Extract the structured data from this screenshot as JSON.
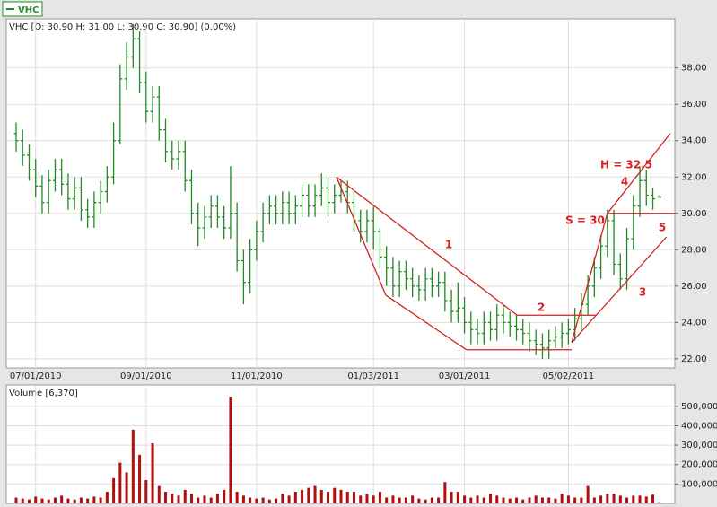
{
  "chart_data": {
    "type": "ohlc",
    "name": "VHC",
    "header": "VHC [O: 30.90  H: 31.00  L: 30.90  C: 30.90] (0.00%)",
    "color": "#228b22",
    "categories": [
      null,
      null,
      null,
      "07/01/2010",
      null,
      null,
      null,
      null,
      null,
      null,
      null,
      null,
      null,
      null,
      null,
      null,
      null,
      null,
      null,
      null,
      "09/01/2010",
      null,
      null,
      null,
      null,
      null,
      null,
      null,
      null,
      null,
      null,
      null,
      null,
      null,
      null,
      null,
      null,
      "11/01/2010",
      null,
      null,
      null,
      null,
      null,
      null,
      null,
      null,
      null,
      null,
      null,
      null,
      null,
      null,
      null,
      null,
      null,
      "01/03/2011",
      null,
      null,
      null,
      null,
      null,
      null,
      null,
      null,
      null,
      null,
      null,
      null,
      null,
      "03/01/2011",
      null,
      null,
      null,
      null,
      null,
      null,
      null,
      null,
      null,
      null,
      null,
      null,
      null,
      null,
      null,
      "05/02/2011",
      null,
      null,
      null,
      null,
      null,
      null,
      null,
      null,
      null,
      null,
      null,
      null,
      null,
      null
    ],
    "open": [
      34.4,
      34.0,
      33.2,
      32.4,
      31.5,
      30.6,
      31.8,
      32.4,
      31.6,
      30.8,
      31.4,
      30.2,
      29.8,
      30.6,
      31.2,
      32.0,
      34.0,
      37.4,
      38.6,
      39.6,
      37.2,
      35.6,
      36.4,
      34.6,
      33.4,
      33.0,
      33.4,
      31.8,
      30.0,
      29.2,
      29.8,
      30.4,
      29.8,
      29.2,
      30.0,
      27.4,
      26.2,
      28.0,
      29.0,
      30.0,
      30.4,
      30.0,
      30.6,
      30.0,
      30.4,
      31.0,
      30.4,
      31.0,
      31.4,
      30.6,
      31.0,
      31.2,
      30.6,
      29.6,
      29.0,
      29.6,
      29.0,
      27.6,
      27.0,
      26.0,
      26.8,
      26.4,
      26.0,
      25.8,
      26.4,
      26.0,
      26.2,
      25.2,
      24.6,
      24.8,
      24.0,
      23.6,
      23.4,
      24.0,
      23.6,
      24.4,
      24.0,
      23.8,
      23.6,
      23.4,
      23.0,
      22.8,
      22.6,
      23.0,
      23.2,
      23.4,
      23.6,
      24.2,
      25.0,
      26.0,
      27.0,
      28.2,
      29.6,
      27.2,
      26.4,
      28.6,
      30.4,
      31.8,
      31.0,
      30.9
    ],
    "high": [
      35.0,
      34.6,
      33.8,
      33.0,
      32.1,
      32.4,
      33.0,
      33.0,
      32.2,
      32.0,
      32.0,
      30.8,
      31.2,
      31.8,
      32.6,
      35.0,
      38.2,
      39.4,
      40.4,
      40.0,
      37.8,
      37.0,
      37.0,
      35.2,
      34.0,
      34.0,
      34.0,
      32.4,
      30.6,
      30.4,
      31.0,
      31.0,
      30.4,
      32.6,
      30.6,
      28.0,
      28.6,
      29.6,
      30.6,
      31.0,
      31.0,
      31.2,
      31.2,
      31.0,
      31.6,
      31.6,
      31.6,
      32.2,
      32.0,
      31.6,
      31.8,
      31.8,
      31.2,
      30.2,
      30.2,
      30.4,
      29.2,
      28.2,
      27.6,
      27.4,
      27.4,
      27.0,
      26.6,
      27.0,
      27.0,
      26.8,
      26.8,
      25.8,
      26.2,
      25.4,
      24.6,
      24.2,
      24.6,
      24.6,
      25.0,
      25.0,
      24.6,
      24.4,
      24.2,
      24.0,
      23.6,
      23.4,
      23.6,
      23.8,
      24.0,
      24.2,
      24.8,
      25.6,
      26.6,
      27.6,
      28.8,
      30.2,
      30.2,
      27.8,
      29.2,
      31.0,
      32.6,
      32.4,
      31.4,
      31.0
    ],
    "low": [
      33.4,
      32.6,
      31.8,
      30.9,
      30.0,
      30.0,
      31.2,
      31.0,
      30.2,
      30.2,
      29.6,
      29.2,
      29.2,
      30.0,
      30.6,
      31.6,
      33.8,
      36.8,
      38.0,
      36.6,
      35.0,
      35.0,
      34.0,
      32.8,
      32.4,
      32.4,
      31.2,
      29.4,
      28.2,
      28.6,
      29.2,
      29.2,
      28.6,
      28.6,
      26.8,
      25.0,
      25.6,
      27.4,
      28.4,
      29.4,
      29.4,
      29.4,
      29.4,
      29.4,
      29.8,
      29.8,
      29.8,
      30.4,
      29.8,
      30.0,
      30.6,
      30.0,
      29.0,
      28.4,
      28.4,
      28.0,
      27.0,
      26.0,
      25.4,
      25.4,
      25.8,
      25.4,
      25.2,
      25.2,
      25.4,
      25.4,
      24.6,
      24.0,
      24.0,
      23.4,
      22.8,
      22.8,
      22.8,
      23.0,
      23.0,
      23.4,
      23.2,
      23.0,
      22.8,
      22.4,
      22.2,
      22.0,
      22.0,
      22.6,
      22.6,
      22.8,
      23.0,
      23.6,
      24.4,
      25.4,
      26.4,
      27.6,
      26.6,
      25.8,
      25.8,
      28.0,
      29.8,
      30.4,
      30.2,
      30.9
    ],
    "close": [
      34.0,
      33.2,
      32.4,
      31.5,
      30.6,
      31.8,
      32.4,
      31.6,
      30.8,
      31.4,
      30.2,
      29.8,
      30.6,
      31.2,
      32.0,
      34.0,
      37.4,
      38.6,
      39.6,
      37.2,
      35.6,
      36.4,
      34.6,
      33.4,
      33.0,
      33.4,
      31.8,
      30.0,
      29.2,
      29.8,
      30.4,
      29.8,
      29.2,
      30.0,
      27.4,
      26.2,
      28.0,
      29.0,
      30.0,
      30.4,
      30.0,
      30.6,
      30.0,
      30.4,
      31.0,
      30.4,
      31.0,
      31.4,
      30.6,
      31.0,
      31.2,
      30.6,
      29.6,
      29.0,
      29.6,
      29.0,
      27.6,
      27.0,
      26.0,
      26.8,
      26.4,
      26.0,
      25.8,
      26.4,
      26.0,
      26.2,
      25.2,
      24.6,
      24.8,
      24.0,
      23.6,
      23.4,
      24.0,
      23.6,
      24.4,
      24.0,
      23.8,
      23.6,
      23.4,
      23.0,
      22.8,
      22.6,
      23.0,
      23.2,
      23.4,
      23.6,
      24.2,
      25.0,
      26.0,
      27.0,
      28.2,
      29.6,
      27.2,
      26.4,
      28.6,
      30.4,
      31.8,
      31.0,
      30.8,
      30.9
    ],
    "ylim": [
      21.5,
      40.7
    ],
    "yticks": [
      {
        "value": 22,
        "label": "22.00"
      },
      {
        "value": 24,
        "label": "24.00"
      },
      {
        "value": 26,
        "label": "26.00"
      },
      {
        "value": 28,
        "label": "28.00"
      },
      {
        "value": 30,
        "label": "30.00"
      },
      {
        "value": 32,
        "label": "32.00"
      },
      {
        "value": 34,
        "label": "34.00"
      },
      {
        "value": 36,
        "label": "36.00"
      },
      {
        "value": 38,
        "label": "38.00"
      }
    ],
    "trend_color": "#d42020",
    "trendlines": [
      {
        "x": [
          49.3,
          77.1
        ],
        "y": [
          32.0,
          24.4
        ]
      },
      {
        "x": [
          49.3,
          56.9
        ],
        "y": [
          32.0,
          25.5
        ]
      },
      {
        "x": [
          56.9,
          69.3
        ],
        "y": [
          25.5,
          22.5
        ]
      },
      {
        "x": [
          69.3,
          85.5
        ],
        "y": [
          22.5,
          22.5
        ]
      },
      {
        "x": [
          77.1,
          89.4
        ],
        "y": [
          24.4,
          24.4
        ]
      },
      {
        "x": [
          85.5,
          100.1
        ],
        "y": [
          22.9,
          28.7
        ]
      },
      {
        "x": [
          85.5,
          91
        ],
        "y": [
          22.9,
          30.0
        ]
      },
      {
        "x": [
          91,
          100.7
        ],
        "y": [
          30.0,
          34.4
        ]
      },
      {
        "x": [
          91,
          101.6
        ],
        "y": [
          30.0,
          30.0
        ]
      }
    ],
    "annotations": [
      "1",
      "2",
      "3",
      "4",
      "5",
      "H = 32.5",
      "S = 30"
    ],
    "volume": {
      "title": "Volume [6,370]",
      "color": "#b01010",
      "values": [
        30000,
        25000,
        20000,
        35000,
        25000,
        20000,
        30000,
        40000,
        25000,
        20000,
        30000,
        25000,
        35000,
        30000,
        60000,
        130000,
        210000,
        160000,
        380000,
        250000,
        120000,
        310000,
        90000,
        60000,
        50000,
        40000,
        70000,
        50000,
        30000,
        40000,
        30000,
        50000,
        70000,
        550000,
        60000,
        40000,
        30000,
        25000,
        30000,
        20000,
        25000,
        50000,
        40000,
        60000,
        70000,
        80000,
        90000,
        70000,
        60000,
        80000,
        70000,
        60000,
        60000,
        40000,
        50000,
        40000,
        60000,
        30000,
        40000,
        30000,
        30000,
        40000,
        25000,
        20000,
        30000,
        30000,
        110000,
        60000,
        60000,
        40000,
        30000,
        40000,
        30000,
        50000,
        40000,
        30000,
        25000,
        30000,
        20000,
        30000,
        40000,
        30000,
        30000,
        25000,
        50000,
        40000,
        30000,
        30000,
        90000,
        30000,
        40000,
        50000,
        50000,
        40000,
        30000,
        40000,
        40000,
        35000,
        45000,
        6370
      ],
      "ylim": [
        0,
        610000
      ],
      "yticks": [
        {
          "value": 100000,
          "label": "100,000"
        },
        {
          "value": 200000,
          "label": "200,000"
        },
        {
          "value": 300000,
          "label": "300,000"
        },
        {
          "value": 400000,
          "label": "400,000"
        },
        {
          "value": 500000,
          "label": "500,000"
        }
      ]
    }
  }
}
